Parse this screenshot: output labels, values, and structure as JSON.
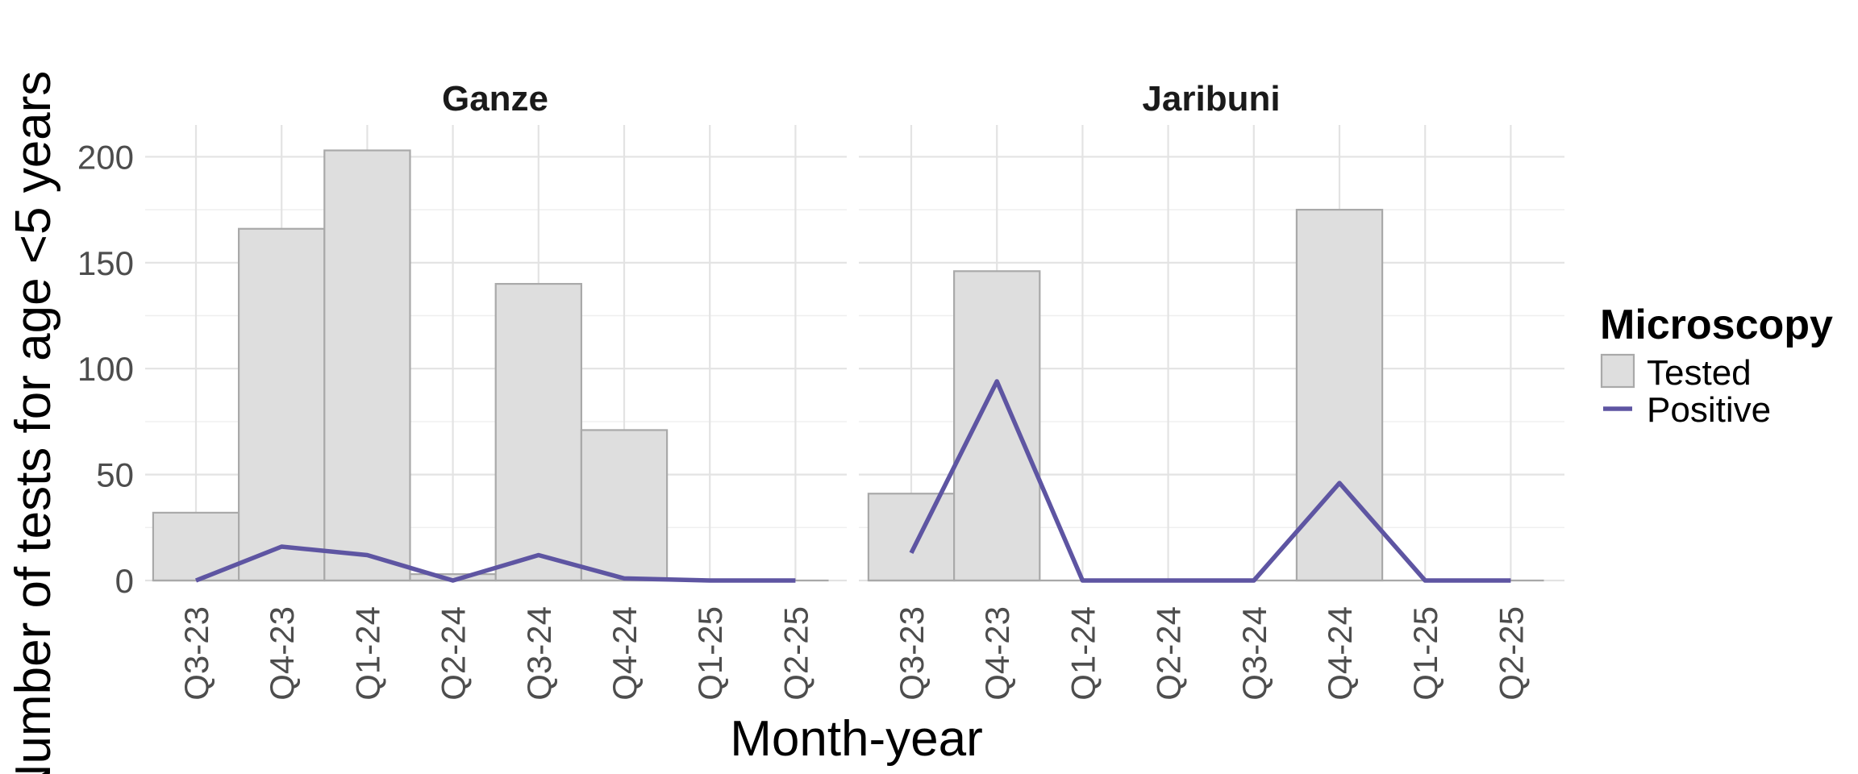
{
  "chart_data": {
    "type": "bar",
    "xlabel": "Month-year",
    "ylabel": "Number of tests for age <5 years",
    "ylim": [
      0,
      215
    ],
    "yticks": [
      0,
      50,
      100,
      150,
      200
    ],
    "categories": [
      "Q3-23",
      "Q4-23",
      "Q1-24",
      "Q2-24",
      "Q3-24",
      "Q4-24",
      "Q1-25",
      "Q2-25"
    ],
    "grid": true,
    "legend": {
      "title": "Microscopy",
      "placement": "right",
      "items": [
        {
          "label": "Tested",
          "kind": "bar"
        },
        {
          "label": "Positive",
          "kind": "line"
        }
      ]
    },
    "colors": {
      "bar_fill": "#dedede",
      "bar_outline": "#a9a9a9",
      "line": "#5e55a2"
    },
    "facets": [
      {
        "name": "Ganze",
        "series": [
          {
            "name": "Tested",
            "type": "bar",
            "values": [
              32,
              166,
              203,
              3,
              140,
              71,
              0,
              0
            ]
          },
          {
            "name": "Positive",
            "type": "line",
            "values": [
              0,
              16,
              12,
              0,
              12,
              1,
              0,
              0
            ]
          }
        ]
      },
      {
        "name": "Jaribuni",
        "series": [
          {
            "name": "Tested",
            "type": "bar",
            "values": [
              41,
              146,
              0,
              0,
              0,
              175,
              0,
              0
            ]
          },
          {
            "name": "Positive",
            "type": "line",
            "values": [
              13,
              94,
              0,
              0,
              0,
              46,
              0,
              0
            ]
          }
        ]
      }
    ]
  }
}
